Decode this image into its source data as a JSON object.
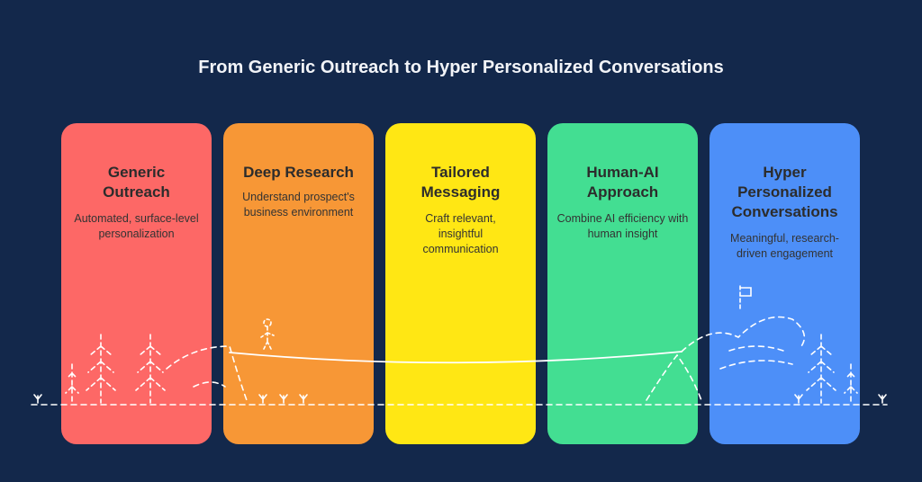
{
  "title": "From Generic Outreach to Hyper Personalized Conversations",
  "stages": [
    {
      "heading": "Generic Outreach",
      "description": "Automated, surface-level personalization",
      "color": "#fd6866"
    },
    {
      "heading": "Deep Research",
      "description": "Understand prospect's business environment",
      "color": "#f79736"
    },
    {
      "heading": "Tailored Messaging",
      "description": "Craft relevant, insightful communication",
      "color": "#ffe714"
    },
    {
      "heading": "Human-AI Approach",
      "description": "Combine AI efficiency with human insight",
      "color": "#43de92"
    },
    {
      "heading": "Hyper Personalized Conversations",
      "description": "Meaningful, research-driven engagement",
      "color": "#4d8ff8"
    }
  ],
  "background": "#13284b"
}
